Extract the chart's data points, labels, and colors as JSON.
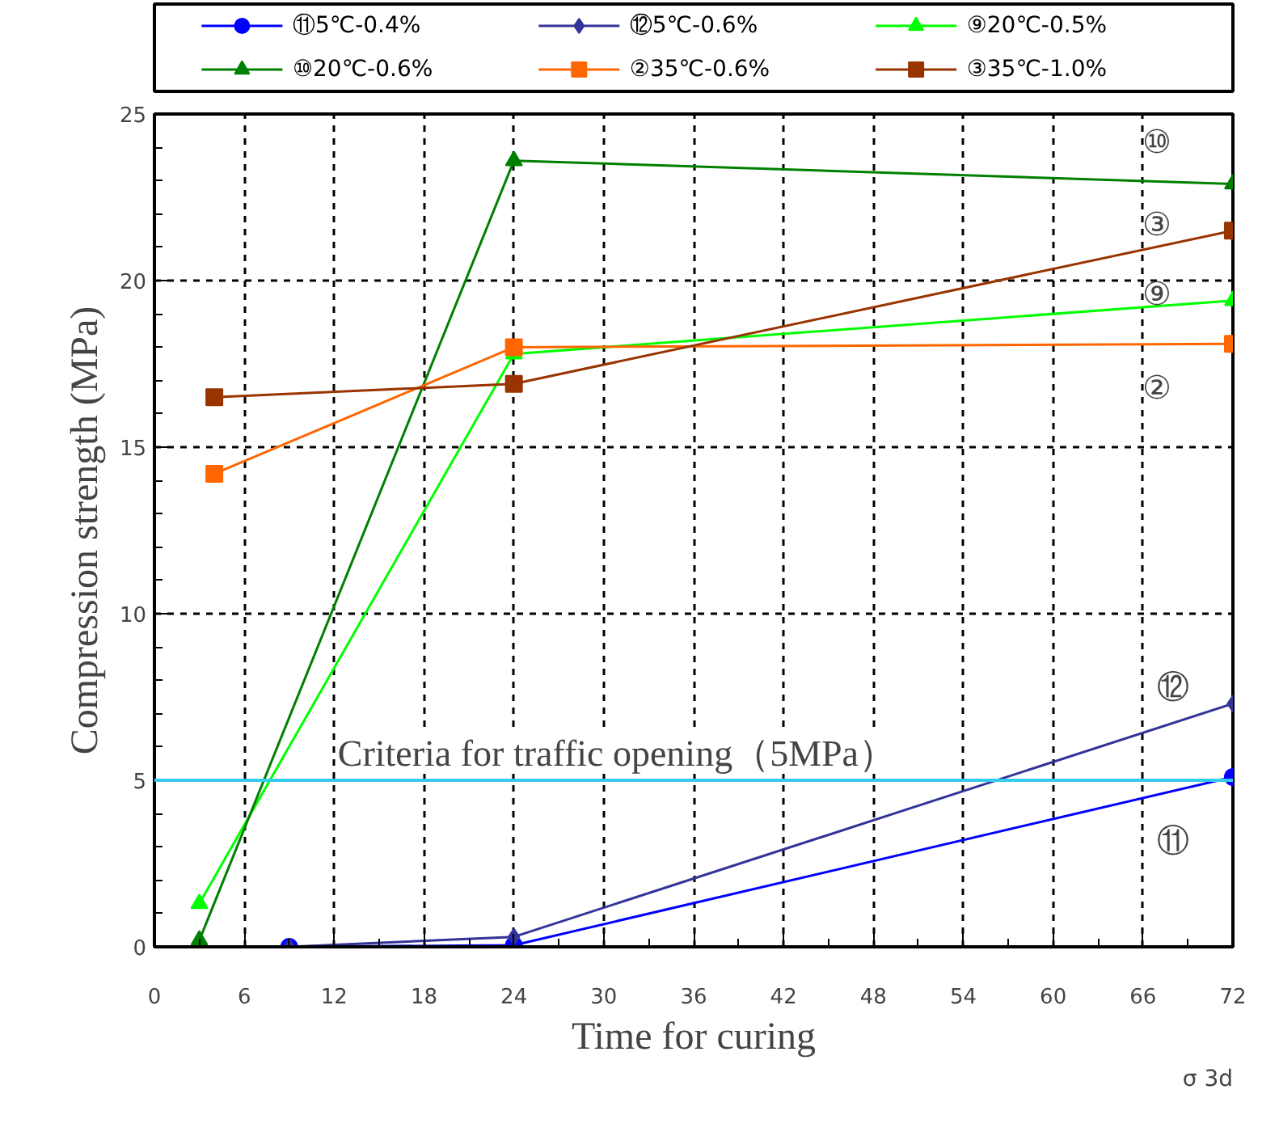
{
  "chart_data": {
    "type": "line",
    "xlabel": "Time for curing",
    "ylabel": "Compression strength (MPa)",
    "xlim": [
      0,
      72
    ],
    "xticks": [
      0,
      6,
      12,
      18,
      24,
      30,
      36,
      42,
      48,
      54,
      60,
      66,
      72
    ],
    "ylim": [
      0,
      25
    ],
    "yticks": [
      0,
      5,
      10,
      15,
      20,
      25
    ],
    "grid": true,
    "legend": "top",
    "series": [
      {
        "name": "⑪5℃-0.4%",
        "color": "#0000ff",
        "marker": "circle",
        "x": [
          9,
          24,
          72
        ],
        "values": [
          0,
          0.05,
          5.1
        ]
      },
      {
        "name": "⑫5℃-0.6%",
        "color": "#333399",
        "marker": "diamond",
        "x": [
          9,
          24,
          72
        ],
        "values": [
          0,
          0.3,
          7.3
        ]
      },
      {
        "name": "⑨20℃-0.5%",
        "color": "#00ff00",
        "marker": "triangle",
        "x": [
          3,
          24,
          72
        ],
        "values": [
          1.3,
          17.8,
          19.4
        ]
      },
      {
        "name": "⑩20℃-0.6%",
        "color": "#008000",
        "marker": "triangle",
        "x": [
          3,
          24,
          72
        ],
        "values": [
          0.2,
          23.6,
          22.9
        ]
      },
      {
        "name": "②35℃-0.6%",
        "color": "#ff6600",
        "marker": "square",
        "x": [
          4,
          24,
          72
        ],
        "values": [
          14.2,
          18.0,
          18.1
        ]
      },
      {
        "name": "③35℃-1.0%",
        "color": "#993300",
        "marker": "square",
        "x": [
          4,
          24,
          72
        ],
        "values": [
          16.5,
          16.9,
          21.5
        ]
      }
    ],
    "ref_lines": [
      {
        "axis": "y",
        "value": 5,
        "label": "Criteria for traffic opening（5MPa）",
        "color": "#33ccee"
      }
    ],
    "annotations": [
      "⑩",
      "③",
      "⑨",
      "②",
      "⑫",
      "⑪",
      "σ 3d"
    ]
  }
}
